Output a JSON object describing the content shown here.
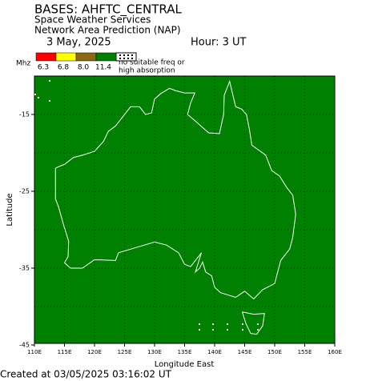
{
  "header": {
    "title": "BASES: AHFTC_CENTRAL",
    "line2": "Space Weather Services",
    "line3": "Network Area Prediction (NAP)",
    "date": "3 May, 2025",
    "hour": "Hour:  3 UT"
  },
  "legend": {
    "unit": "Mhz",
    "colors": [
      "#ff0000",
      "#ffff00",
      "#8b6914",
      "#008000"
    ],
    "thresholds": [
      "6.3",
      "6.8",
      "8.0",
      "11.4"
    ],
    "note": [
      "no suitable freq or",
      "high absorption"
    ]
  },
  "map": {
    "fill": "#008000",
    "x_axis_label": "Longitude East",
    "y_axis_label": "Latitude",
    "xticks": [
      "110E",
      "115E",
      "120E",
      "125E",
      "130E",
      "135E",
      "140E",
      "145E",
      "150E",
      "155E",
      "160E"
    ],
    "yticks": [
      "-15",
      "-25",
      "-35",
      "-45"
    ]
  },
  "footer": "Created at 03/05/2025 03:16:02 UT"
}
